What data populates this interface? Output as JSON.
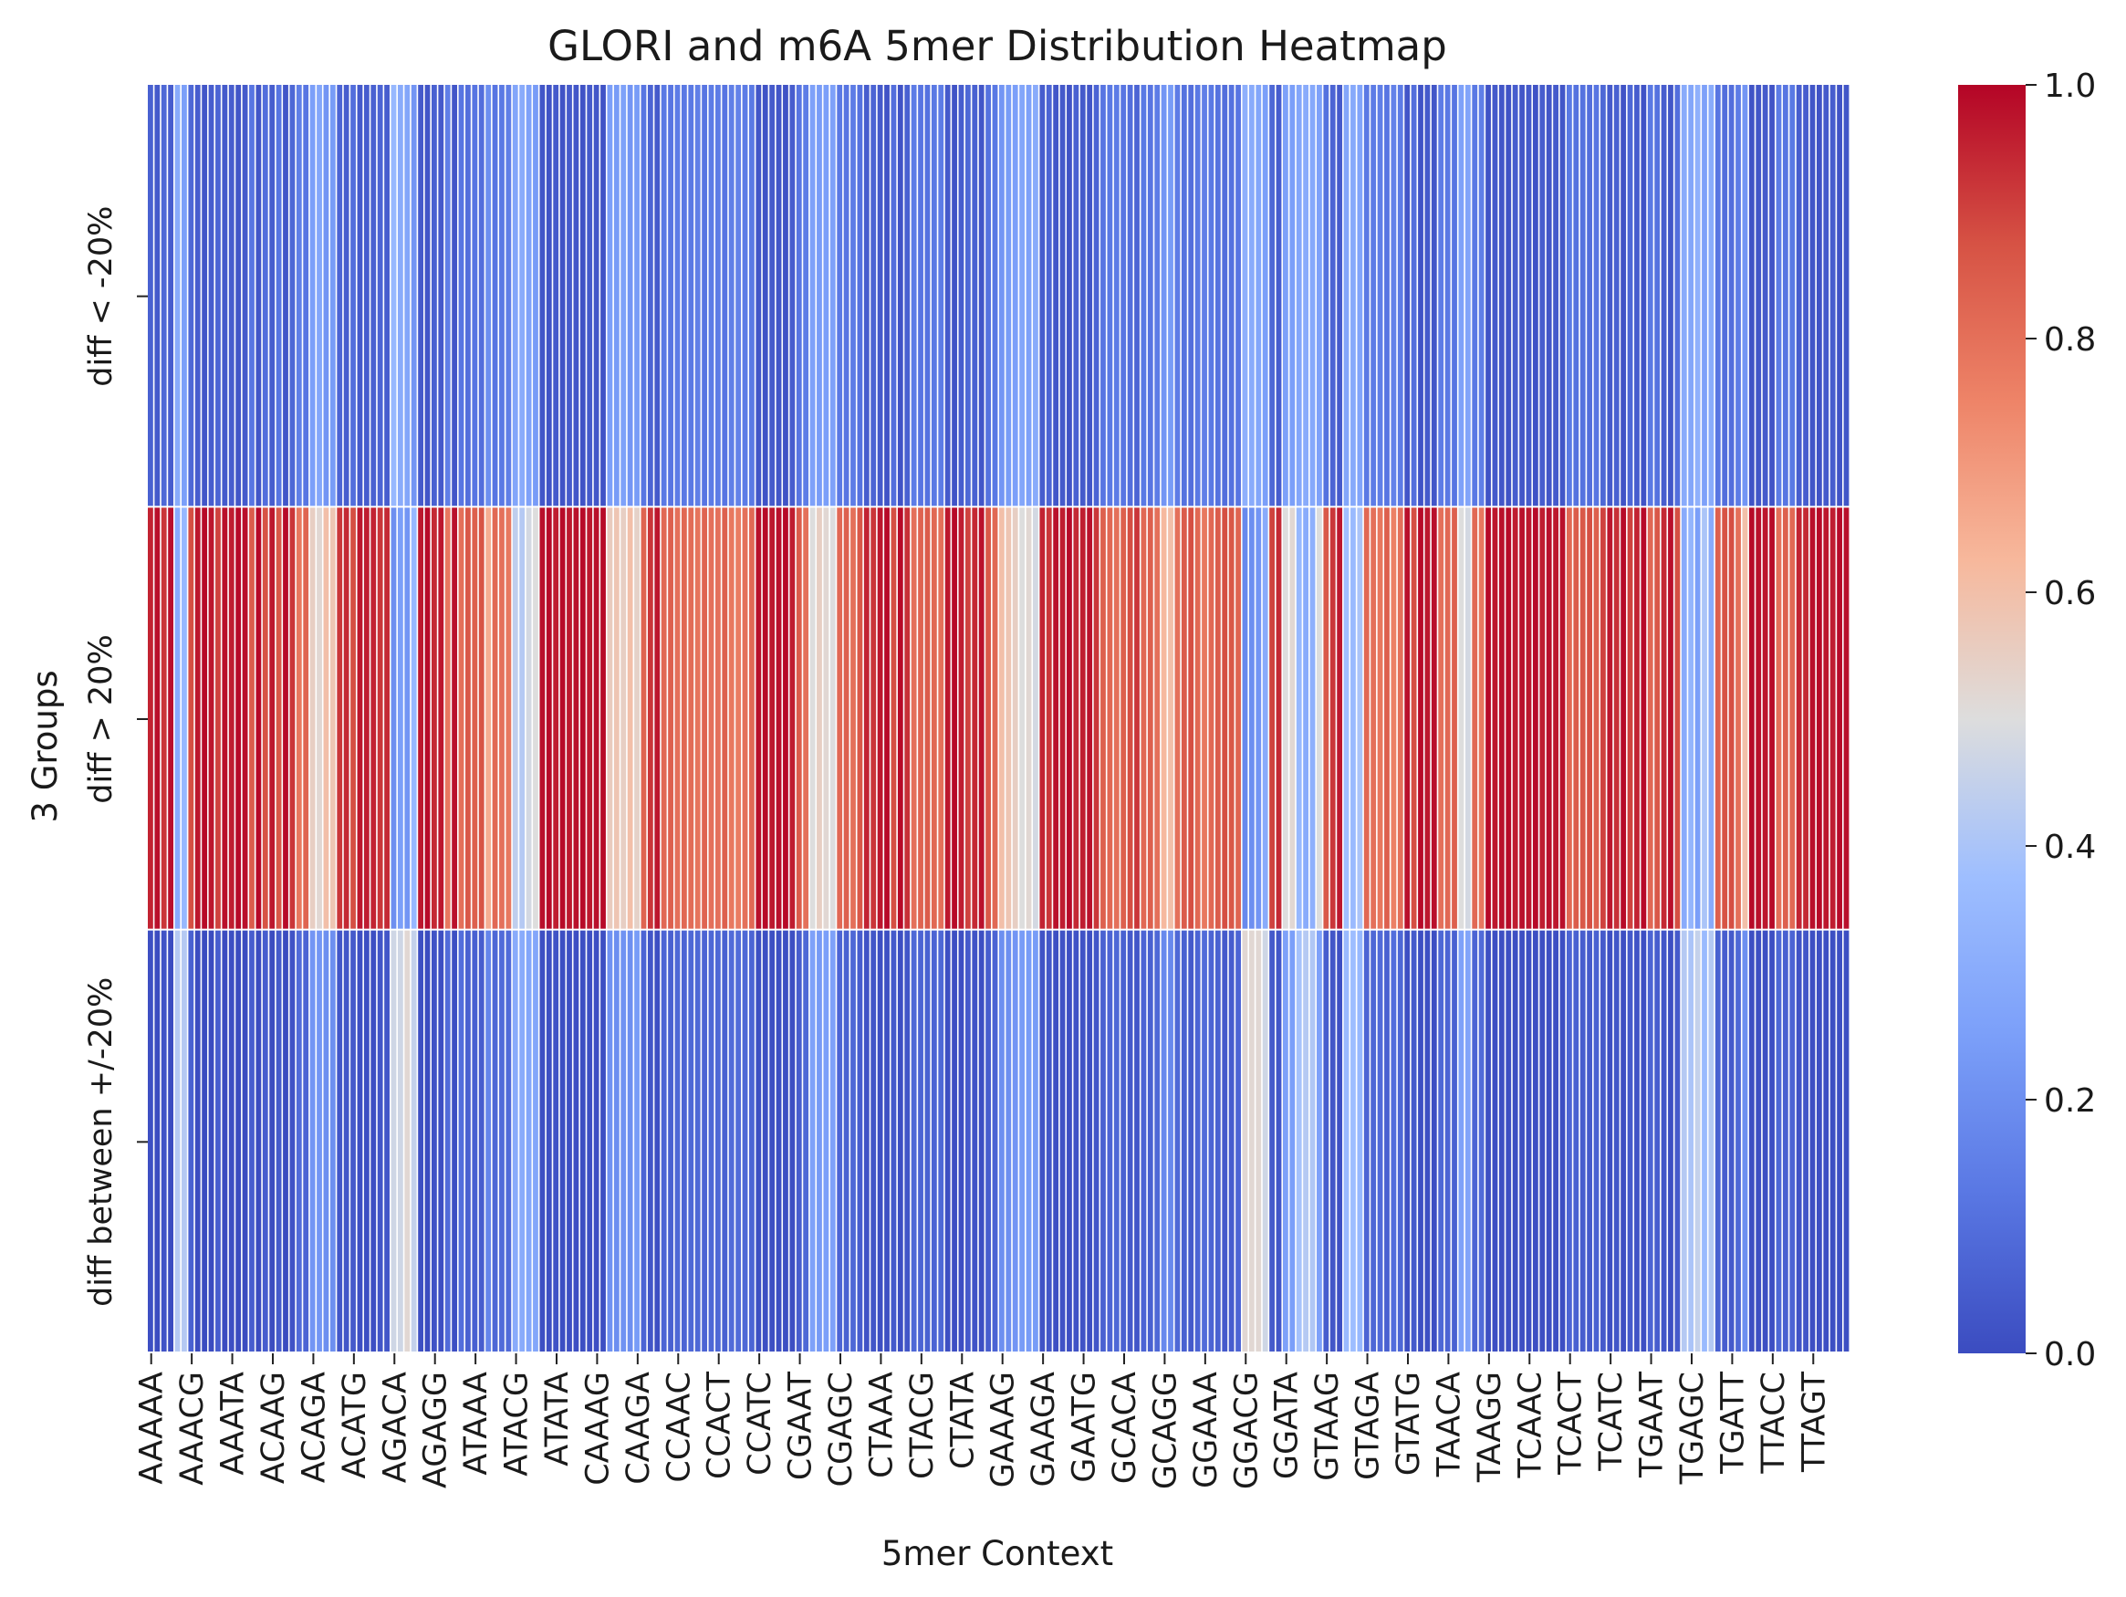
{
  "chart_data": {
    "type": "heatmap",
    "title": "GLORI and m6A 5mer Distribution Heatmap",
    "xlabel": "5mer Context",
    "ylabel": "3 Groups",
    "rows": [
      "diff < -20%",
      "diff > 20%",
      "diff between +/-20%"
    ],
    "x_tick_labels": [
      "AAAAA",
      "AAACG",
      "AAATA",
      "ACAAG",
      "ACAGA",
      "ACATG",
      "AGACA",
      "AGAGG",
      "ATAAA",
      "ATACG",
      "ATATA",
      "CAAAG",
      "CAAGA",
      "CCAAC",
      "CCACT",
      "CCATC",
      "CGAAT",
      "CGAGC",
      "CTAAA",
      "CTACG",
      "CTATA",
      "GAAAG",
      "GAAGA",
      "GAATG",
      "GCACA",
      "GCAGG",
      "GGAAA",
      "GGACG",
      "GGATA",
      "GTAAG",
      "GTAGA",
      "GTATG",
      "TAACA",
      "TAAGG",
      "TCAAC",
      "TCACT",
      "TCATC",
      "TGAAT",
      "TGAGC",
      "TGATT",
      "TTACC",
      "TTAGT"
    ],
    "columns_per_tick": 6,
    "n_columns": 252,
    "colormap": "coolwarm",
    "colorbar": {
      "min": 0.0,
      "max": 1.0,
      "ticks": [
        "0.0",
        "0.2",
        "0.4",
        "0.6",
        "0.8",
        "1.0"
      ]
    },
    "diff_gt_20_values": [
      0.95,
      0.98,
      0.92,
      0.98,
      0.3,
      0.35,
      0.88,
      0.97,
      0.99,
      0.97,
      0.9,
      0.98,
      0.96,
      0.99,
      0.98,
      0.85,
      0.99,
      0.87,
      0.97,
      0.86,
      0.99,
      0.92,
      0.78,
      0.83,
      0.55,
      0.52,
      0.6,
      0.58,
      0.92,
      0.94,
      0.88,
      0.97,
      0.96,
      0.95,
      0.92,
      0.94,
      0.2,
      0.25,
      0.22,
      0.35,
      0.97,
      0.99,
      0.94,
      0.97,
      0.78,
      0.98,
      0.8,
      0.86,
      0.84,
      0.87,
      0.65,
      0.82,
      0.8,
      0.78,
      0.44,
      0.42,
      0.48,
      0.5,
      0.98,
      0.99,
      0.96,
      0.99,
      0.97,
      0.98,
      0.99,
      0.97,
      0.98,
      0.99,
      0.56,
      0.58,
      0.55,
      0.6,
      0.54,
      0.83,
      0.92,
      0.97,
      0.82,
      0.84,
      0.8,
      0.82,
      0.81,
      0.79,
      0.83,
      0.8,
      0.8,
      0.84,
      0.78,
      0.77,
      0.8,
      0.82,
      0.98,
      0.99,
      0.97,
      0.98,
      0.99,
      0.96,
      0.85,
      0.8,
      0.5,
      0.55,
      0.52,
      0.5,
      0.82,
      0.84,
      0.8,
      0.86,
      0.95,
      0.92,
      0.97,
      0.99,
      0.88,
      0.99,
      0.93,
      0.8,
      0.83,
      0.85,
      0.82,
      0.8,
      0.97,
      0.99,
      0.96,
      0.9,
      0.94,
      0.98,
      0.86,
      0.82,
      0.6,
      0.58,
      0.55,
      0.5,
      0.52,
      0.48,
      0.95,
      0.92,
      0.98,
      0.96,
      0.99,
      0.94,
      0.96,
      0.98,
      0.92,
      0.84,
      0.82,
      0.8,
      0.84,
      0.88,
      0.92,
      0.82,
      0.84,
      0.8,
      0.62,
      0.6,
      0.8,
      0.85,
      0.88,
      0.82,
      0.78,
      0.82,
      0.85,
      0.88,
      0.86,
      0.83,
      0.18,
      0.2,
      0.22,
      0.3,
      0.9,
      0.94,
      0.5,
      0.52,
      0.35,
      0.3,
      0.32,
      0.5,
      0.86,
      0.92,
      0.97,
      0.38,
      0.36,
      0.4,
      0.82,
      0.8,
      0.78,
      0.84,
      0.76,
      0.8,
      0.98,
      0.88,
      0.99,
      0.97,
      0.98,
      0.8,
      0.82,
      0.84,
      0.5,
      0.48,
      0.82,
      0.78,
      0.99,
      0.97,
      0.98,
      0.99,
      0.96,
      0.98,
      0.97,
      0.99,
      0.96,
      0.98,
      0.97,
      0.98,
      0.82,
      0.85,
      0.86,
      0.88,
      0.84,
      0.9,
      0.97,
      0.93,
      0.99,
      0.9,
      0.95,
      0.99,
      0.82,
      0.86,
      0.94,
      0.98,
      0.88,
      0.3,
      0.34,
      0.25,
      0.4,
      0.3,
      0.84,
      0.87,
      0.88,
      0.8,
      0.6,
      0.99,
      0.98,
      0.97,
      0.99,
      0.8,
      0.84,
      0.82,
      0.95,
      0.94,
      0.98,
      0.99,
      0.97,
      0.96,
      0.99,
      0.98
    ],
    "diff_lt_neg20_values": [
      0.06,
      0.04,
      0.08,
      0.05,
      0.3,
      0.25,
      0.08,
      0.05,
      0.03,
      0.05,
      0.07,
      0.04,
      0.05,
      0.03,
      0.04,
      0.12,
      0.03,
      0.1,
      0.05,
      0.12,
      0.03,
      0.08,
      0.15,
      0.12,
      0.25,
      0.28,
      0.22,
      0.24,
      0.07,
      0.05,
      0.1,
      0.04,
      0.05,
      0.06,
      0.07,
      0.05,
      0.35,
      0.3,
      0.28,
      0.22,
      0.04,
      0.03,
      0.06,
      0.04,
      0.15,
      0.03,
      0.12,
      0.1,
      0.12,
      0.1,
      0.2,
      0.12,
      0.13,
      0.15,
      0.28,
      0.3,
      0.26,
      0.24,
      0.03,
      0.02,
      0.04,
      0.02,
      0.04,
      0.03,
      0.02,
      0.04,
      0.03,
      0.02,
      0.25,
      0.24,
      0.26,
      0.22,
      0.24,
      0.12,
      0.07,
      0.04,
      0.13,
      0.12,
      0.14,
      0.13,
      0.13,
      0.15,
      0.12,
      0.14,
      0.14,
      0.12,
      0.15,
      0.16,
      0.14,
      0.13,
      0.03,
      0.02,
      0.04,
      0.03,
      0.02,
      0.05,
      0.12,
      0.14,
      0.26,
      0.24,
      0.25,
      0.26,
      0.13,
      0.12,
      0.14,
      0.11,
      0.05,
      0.07,
      0.04,
      0.02,
      0.1,
      0.02,
      0.06,
      0.14,
      0.12,
      0.11,
      0.13,
      0.14,
      0.04,
      0.02,
      0.05,
      0.08,
      0.06,
      0.03,
      0.11,
      0.13,
      0.22,
      0.24,
      0.25,
      0.28,
      0.26,
      0.3,
      0.05,
      0.07,
      0.03,
      0.04,
      0.02,
      0.06,
      0.04,
      0.03,
      0.07,
      0.12,
      0.13,
      0.14,
      0.12,
      0.1,
      0.07,
      0.13,
      0.12,
      0.14,
      0.22,
      0.24,
      0.14,
      0.11,
      0.1,
      0.13,
      0.15,
      0.13,
      0.11,
      0.1,
      0.11,
      0.12,
      0.32,
      0.3,
      0.28,
      0.25,
      0.08,
      0.05,
      0.26,
      0.25,
      0.28,
      0.3,
      0.29,
      0.26,
      0.11,
      0.07,
      0.04,
      0.28,
      0.29,
      0.27,
      0.13,
      0.14,
      0.15,
      0.12,
      0.16,
      0.14,
      0.03,
      0.1,
      0.02,
      0.04,
      0.03,
      0.14,
      0.13,
      0.12,
      0.26,
      0.27,
      0.13,
      0.15,
      0.02,
      0.04,
      0.03,
      0.02,
      0.05,
      0.03,
      0.04,
      0.02,
      0.05,
      0.03,
      0.04,
      0.03,
      0.13,
      0.11,
      0.11,
      0.1,
      0.12,
      0.08,
      0.04,
      0.06,
      0.02,
      0.08,
      0.05,
      0.02,
      0.13,
      0.11,
      0.05,
      0.03,
      0.1,
      0.3,
      0.28,
      0.32,
      0.26,
      0.3,
      0.12,
      0.1,
      0.1,
      0.14,
      0.22,
      0.02,
      0.03,
      0.04,
      0.02,
      0.14,
      0.12,
      0.13,
      0.05,
      0.05,
      0.03,
      0.02,
      0.04,
      0.05,
      0.02,
      0.03
    ]
  }
}
